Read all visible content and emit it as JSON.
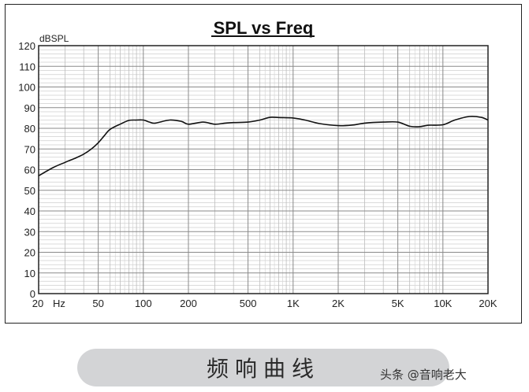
{
  "chart_data": {
    "type": "line",
    "title": "SPL vs Freq",
    "ylabel": "dBSPL",
    "xlabel": "Hz",
    "xscale": "log",
    "xlim": [
      20,
      20000
    ],
    "ylim": [
      0,
      120
    ],
    "grid": true,
    "legend": null,
    "y_ticks": [
      0,
      10,
      20,
      30,
      40,
      50,
      60,
      70,
      80,
      90,
      100,
      110,
      120
    ],
    "x_tick_labels": [
      {
        "value": 20,
        "label": "20"
      },
      {
        "value": 50,
        "label": "50"
      },
      {
        "value": 100,
        "label": "100"
      },
      {
        "value": 200,
        "label": "200"
      },
      {
        "value": 500,
        "label": "500"
      },
      {
        "value": 1000,
        "label": "1K"
      },
      {
        "value": 2000,
        "label": "2K"
      },
      {
        "value": 5000,
        "label": "5K"
      },
      {
        "value": 10000,
        "label": "10K"
      },
      {
        "value": 20000,
        "label": "20K"
      }
    ],
    "series": [
      {
        "name": "SPL",
        "color": "#111111",
        "x": [
          20,
          25,
          30,
          35,
          40,
          45,
          50,
          55,
          60,
          70,
          80,
          90,
          100,
          110,
          120,
          150,
          180,
          200,
          250,
          300,
          350,
          400,
          500,
          600,
          700,
          800,
          1000,
          1200,
          1500,
          2000,
          2500,
          3000,
          4000,
          5000,
          6000,
          7000,
          8000,
          10000,
          12000,
          15000,
          18000,
          20000
        ],
        "values": [
          57,
          61,
          63.5,
          65.5,
          67.5,
          70,
          73,
          76.5,
          79.5,
          82,
          83.8,
          84,
          84,
          83,
          82.5,
          84,
          83.3,
          82,
          83,
          82,
          82.5,
          82.8,
          83,
          84,
          85.3,
          85.2,
          85,
          84,
          82.3,
          81.3,
          81.6,
          82.5,
          83,
          83,
          81,
          80.8,
          81.5,
          81.7,
          84,
          85.7,
          85.3,
          84
        ]
      }
    ]
  },
  "chart": {
    "title": "SPL vs Freq",
    "y_unit": "dBSPL",
    "x_unit": "Hz"
  },
  "caption": {
    "text": "频响曲线"
  },
  "watermark": {
    "text": "头条 @音响老大"
  }
}
